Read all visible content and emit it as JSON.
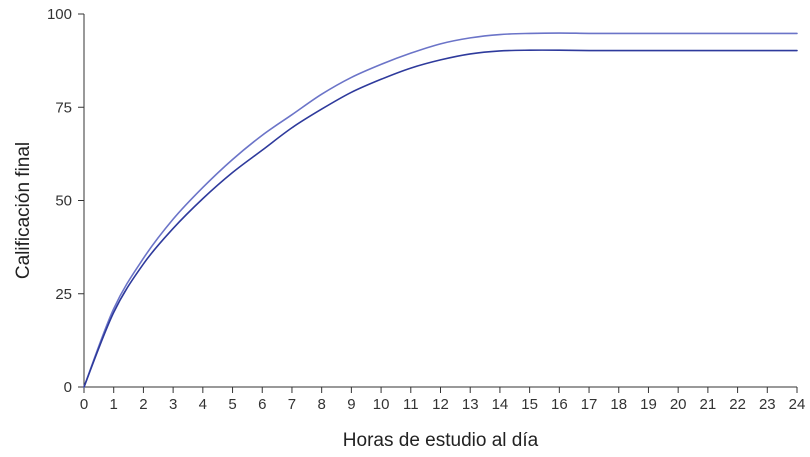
{
  "chart_data": {
    "type": "line",
    "xlabel": "Horas de estudio al día",
    "ylabel": "Calificación final",
    "xlim": [
      0,
      24
    ],
    "ylim": [
      0,
      100
    ],
    "xticks": [
      0,
      1,
      2,
      3,
      4,
      5,
      6,
      7,
      8,
      9,
      10,
      11,
      12,
      13,
      14,
      15,
      16,
      17,
      18,
      19,
      20,
      21,
      22,
      23,
      24
    ],
    "yticks": [
      0,
      25,
      50,
      75,
      100
    ],
    "grid": false,
    "legend": "none",
    "series": [
      {
        "color": "#6b74c8",
        "x": [
          0,
          1,
          2,
          3,
          4,
          5,
          6,
          7,
          8,
          9,
          10,
          11,
          12,
          13,
          14,
          15,
          16,
          17,
          18,
          19,
          20,
          21,
          22,
          23,
          24
        ],
        "y": [
          0,
          21,
          34.5,
          45,
          53.5,
          61,
          67.5,
          73,
          78.5,
          83,
          86.5,
          89.5,
          92,
          93.6,
          94.5,
          94.8,
          94.9,
          94.8,
          94.8,
          94.8,
          94.8,
          94.8,
          94.8,
          94.8,
          94.8
        ]
      },
      {
        "color": "#2e3a9c",
        "x": [
          0,
          1,
          2,
          3,
          4,
          5,
          6,
          7,
          8,
          9,
          10,
          11,
          12,
          13,
          14,
          15,
          16,
          17,
          18,
          19,
          20,
          21,
          22,
          23,
          24
        ],
        "y": [
          0,
          20,
          33,
          42.5,
          50.5,
          57.5,
          63.5,
          69.5,
          74.5,
          79,
          82.5,
          85.5,
          87.7,
          89.3,
          90.1,
          90.3,
          90.3,
          90.2,
          90.2,
          90.2,
          90.2,
          90.2,
          90.2,
          90.2,
          90.2
        ]
      }
    ]
  }
}
